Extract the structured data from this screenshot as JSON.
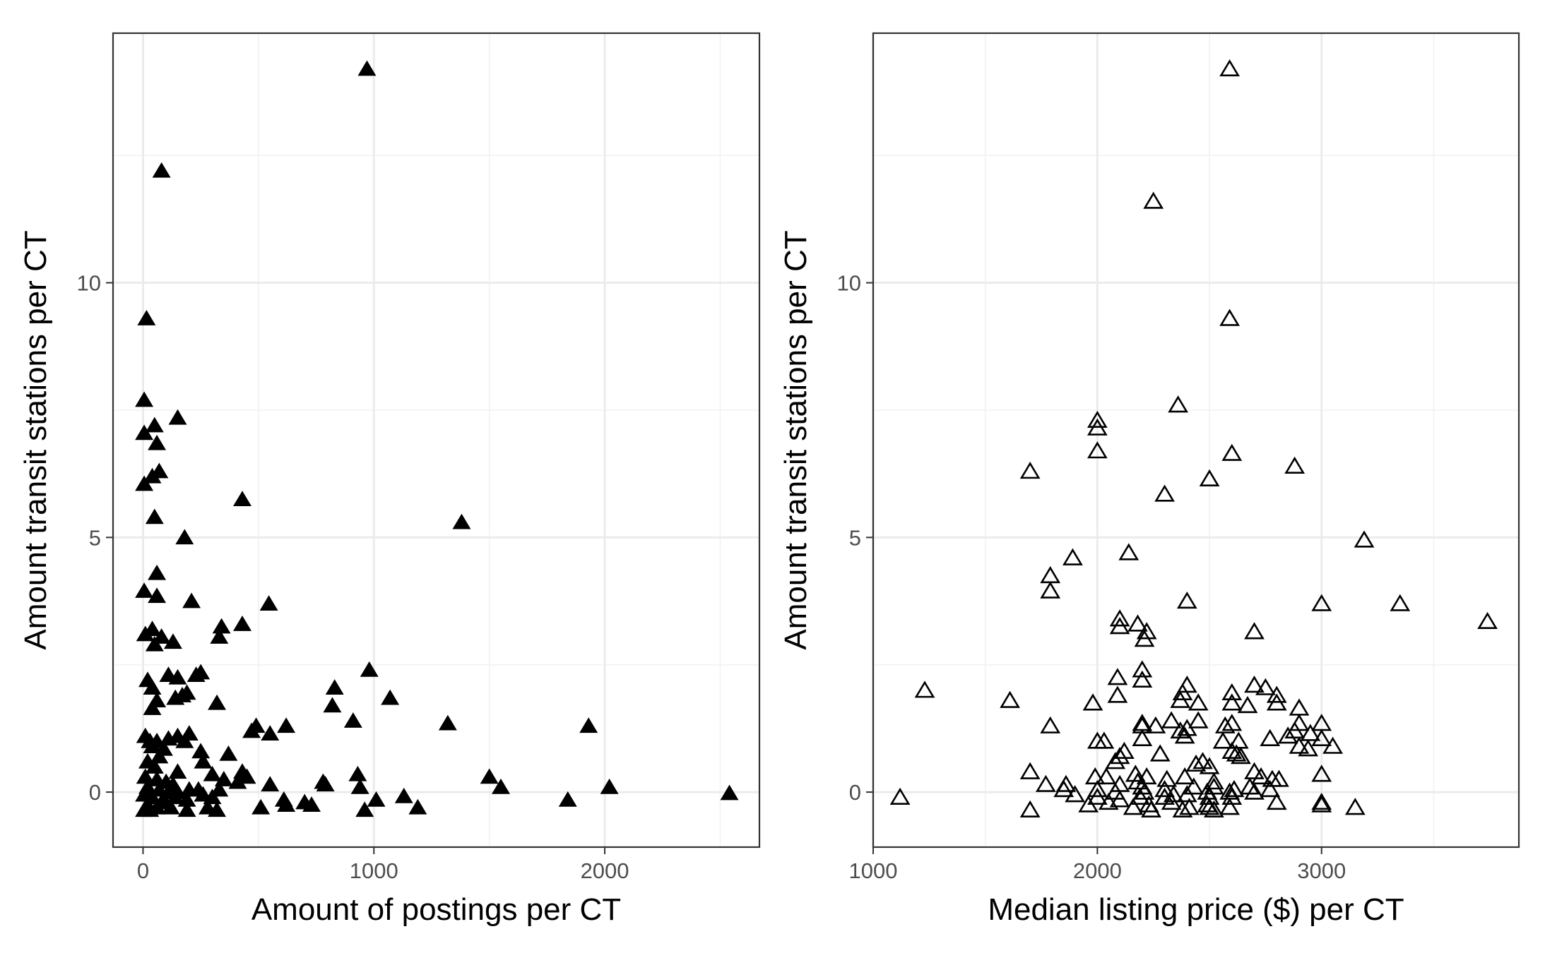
{
  "chart_data": [
    {
      "type": "scatter",
      "marker": "filled-triangle",
      "xlabel": "Amount of postings per CT",
      "ylabel": "Amount transit stations per CT",
      "xlim": [
        -130,
        2670
      ],
      "ylim": [
        -1.08,
        14.9
      ],
      "xticks": [
        0,
        1000,
        2000
      ],
      "yticks": [
        0,
        5,
        10
      ],
      "xticklabels": [
        "0",
        "1000",
        "2000"
      ],
      "yticklabels": [
        "0",
        "5",
        "10"
      ],
      "grid": true,
      "points": [
        [
          970,
          14.2
        ],
        [
          80,
          12.2
        ],
        [
          15,
          9.3
        ],
        [
          5,
          7.7
        ],
        [
          5,
          7.05
        ],
        [
          50,
          7.2
        ],
        [
          60,
          6.85
        ],
        [
          70,
          6.3
        ],
        [
          40,
          6.2
        ],
        [
          5,
          6.05
        ],
        [
          150,
          7.35
        ],
        [
          430,
          5.75
        ],
        [
          1380,
          5.3
        ],
        [
          50,
          5.4
        ],
        [
          180,
          5.0
        ],
        [
          60,
          4.3
        ],
        [
          5,
          3.95
        ],
        [
          60,
          3.85
        ],
        [
          210,
          3.75
        ],
        [
          545,
          3.7
        ],
        [
          430,
          3.3
        ],
        [
          340,
          3.25
        ],
        [
          330,
          3.05
        ],
        [
          10,
          3.1
        ],
        [
          40,
          3.2
        ],
        [
          80,
          3.05
        ],
        [
          130,
          2.95
        ],
        [
          50,
          2.9
        ],
        [
          980,
          2.4
        ],
        [
          230,
          2.3
        ],
        [
          110,
          2.3
        ],
        [
          150,
          2.25
        ],
        [
          20,
          2.2
        ],
        [
          250,
          2.35
        ],
        [
          830,
          2.05
        ],
        [
          40,
          2.05
        ],
        [
          170,
          1.9
        ],
        [
          190,
          1.95
        ],
        [
          1070,
          1.85
        ],
        [
          140,
          1.85
        ],
        [
          60,
          1.8
        ],
        [
          820,
          1.7
        ],
        [
          320,
          1.75
        ],
        [
          40,
          1.65
        ],
        [
          1320,
          1.35
        ],
        [
          1930,
          1.3
        ],
        [
          910,
          1.4
        ],
        [
          490,
          1.3
        ],
        [
          470,
          1.2
        ],
        [
          550,
          1.15
        ],
        [
          620,
          1.3
        ],
        [
          10,
          1.1
        ],
        [
          30,
          1.0
        ],
        [
          60,
          1.0
        ],
        [
          110,
          1.05
        ],
        [
          150,
          1.1
        ],
        [
          200,
          1.15
        ],
        [
          180,
          1.0
        ],
        [
          40,
          0.9
        ],
        [
          90,
          0.85
        ],
        [
          250,
          0.8
        ],
        [
          370,
          0.75
        ],
        [
          70,
          0.7
        ],
        [
          20,
          0.6
        ],
        [
          50,
          0.5
        ],
        [
          260,
          0.6
        ],
        [
          150,
          0.4
        ],
        [
          300,
          0.35
        ],
        [
          430,
          0.4
        ],
        [
          450,
          0.3
        ],
        [
          350,
          0.25
        ],
        [
          1500,
          0.3
        ],
        [
          930,
          0.35
        ],
        [
          10,
          0.3
        ],
        [
          60,
          0.25
        ],
        [
          100,
          0.2
        ],
        [
          130,
          0.15
        ],
        [
          780,
          0.2
        ],
        [
          790,
          0.15
        ],
        [
          1550,
          0.1
        ],
        [
          2020,
          0.1
        ],
        [
          550,
          0.15
        ],
        [
          940,
          0.1
        ],
        [
          240,
          0.05
        ],
        [
          330,
          0.05
        ],
        [
          410,
          0.2
        ],
        [
          20,
          0.1
        ],
        [
          70,
          0.05
        ],
        [
          110,
          0.0
        ],
        [
          150,
          0.0
        ],
        [
          200,
          0.05
        ],
        [
          260,
          -0.05
        ],
        [
          300,
          -0.1
        ],
        [
          190,
          -0.15
        ],
        [
          5,
          -0.05
        ],
        [
          40,
          -0.1
        ],
        [
          90,
          -0.15
        ],
        [
          2540,
          -0.02
        ],
        [
          1840,
          -0.15
        ],
        [
          1130,
          -0.08
        ],
        [
          1010,
          -0.15
        ],
        [
          700,
          -0.2
        ],
        [
          730,
          -0.25
        ],
        [
          620,
          -0.25
        ],
        [
          610,
          -0.15
        ],
        [
          1190,
          -0.3
        ],
        [
          960,
          -0.35
        ],
        [
          510,
          -0.3
        ],
        [
          280,
          -0.3
        ],
        [
          320,
          -0.35
        ],
        [
          190,
          -0.35
        ],
        [
          120,
          -0.3
        ],
        [
          60,
          -0.3
        ],
        [
          20,
          -0.25
        ],
        [
          5,
          -0.35
        ],
        [
          30,
          -0.35
        ],
        [
          80,
          -0.2
        ],
        [
          140,
          -0.1
        ]
      ]
    },
    {
      "type": "scatter",
      "marker": "open-triangle",
      "xlabel": "Median listing price ($) per CT",
      "ylabel": "Amount transit stations per CT",
      "xlim": [
        1000,
        3880
      ],
      "ylim": [
        -1.08,
        14.9
      ],
      "xticks": [
        1000,
        2000,
        3000
      ],
      "yticks": [
        0,
        5,
        10
      ],
      "xticklabels": [
        "1000",
        "2000",
        "3000"
      ],
      "yticklabels": [
        "0",
        "5",
        "10"
      ],
      "grid": true,
      "points": [
        [
          2590,
          14.2
        ],
        [
          2250,
          11.6
        ],
        [
          2590,
          9.3
        ],
        [
          2360,
          7.6
        ],
        [
          2000,
          7.3
        ],
        [
          2000,
          7.15
        ],
        [
          2000,
          6.7
        ],
        [
          2600,
          6.65
        ],
        [
          1700,
          6.3
        ],
        [
          2880,
          6.4
        ],
        [
          2500,
          6.15
        ],
        [
          2300,
          5.85
        ],
        [
          3190,
          4.95
        ],
        [
          2140,
          4.7
        ],
        [
          1890,
          4.6
        ],
        [
          1790,
          4.25
        ],
        [
          1790,
          3.95
        ],
        [
          2400,
          3.75
        ],
        [
          3000,
          3.7
        ],
        [
          3350,
          3.7
        ],
        [
          3740,
          3.35
        ],
        [
          2100,
          3.4
        ],
        [
          2100,
          3.25
        ],
        [
          2180,
          3.3
        ],
        [
          2220,
          3.15
        ],
        [
          2210,
          3.0
        ],
        [
          2700,
          3.15
        ],
        [
          2200,
          2.4
        ],
        [
          2200,
          2.2
        ],
        [
          2090,
          2.25
        ],
        [
          2400,
          2.1
        ],
        [
          2600,
          1.95
        ],
        [
          2700,
          2.1
        ],
        [
          2750,
          2.05
        ],
        [
          2800,
          1.9
        ],
        [
          1230,
          2.0
        ],
        [
          2090,
          1.9
        ],
        [
          2380,
          1.95
        ],
        [
          2370,
          1.8
        ],
        [
          2450,
          1.75
        ],
        [
          2600,
          1.75
        ],
        [
          2670,
          1.7
        ],
        [
          1610,
          1.8
        ],
        [
          1980,
          1.75
        ],
        [
          2800,
          1.75
        ],
        [
          2900,
          1.65
        ],
        [
          2900,
          1.35
        ],
        [
          3000,
          1.35
        ],
        [
          2330,
          1.4
        ],
        [
          2450,
          1.4
        ],
        [
          2570,
          1.3
        ],
        [
          2600,
          1.35
        ],
        [
          2200,
          1.35
        ],
        [
          2260,
          1.3
        ],
        [
          2200,
          1.3
        ],
        [
          2400,
          1.25
        ],
        [
          2370,
          1.2
        ],
        [
          2390,
          1.1
        ],
        [
          1790,
          1.3
        ],
        [
          2200,
          1.05
        ],
        [
          2000,
          1.0
        ],
        [
          2030,
          1.0
        ],
        [
          2560,
          1.0
        ],
        [
          2630,
          1.0
        ],
        [
          2770,
          1.05
        ],
        [
          2850,
          1.1
        ],
        [
          2880,
          1.2
        ],
        [
          2950,
          1.15
        ],
        [
          3000,
          1.05
        ],
        [
          3050,
          0.9
        ],
        [
          2900,
          0.9
        ],
        [
          2940,
          0.85
        ],
        [
          2600,
          0.8
        ],
        [
          2620,
          0.75
        ],
        [
          2640,
          0.7
        ],
        [
          2100,
          0.7
        ],
        [
          2120,
          0.8
        ],
        [
          2080,
          0.6
        ],
        [
          2470,
          0.6
        ],
        [
          2440,
          0.55
        ],
        [
          2500,
          0.5
        ],
        [
          2280,
          0.75
        ],
        [
          1700,
          0.4
        ],
        [
          2700,
          0.4
        ],
        [
          2730,
          0.3
        ],
        [
          3000,
          0.35
        ],
        [
          2170,
          0.35
        ],
        [
          2220,
          0.3
        ],
        [
          1990,
          0.3
        ],
        [
          2040,
          0.3
        ],
        [
          2310,
          0.25
        ],
        [
          2390,
          0.3
        ],
        [
          2520,
          0.2
        ],
        [
          2780,
          0.25
        ],
        [
          2810,
          0.25
        ],
        [
          1770,
          0.15
        ],
        [
          1860,
          0.15
        ],
        [
          2100,
          0.15
        ],
        [
          2180,
          0.2
        ],
        [
          2200,
          0.1
        ],
        [
          2300,
          0.05
        ],
        [
          2430,
          0.1
        ],
        [
          2520,
          0.1
        ],
        [
          2610,
          0.05
        ],
        [
          2680,
          0.1
        ],
        [
          1850,
          0.05
        ],
        [
          2000,
          0.05
        ],
        [
          2080,
          0.0
        ],
        [
          2210,
          0.0
        ],
        [
          2340,
          -0.05
        ],
        [
          2490,
          0.0
        ],
        [
          2590,
          0.0
        ],
        [
          2700,
          0.0
        ],
        [
          2770,
          0.05
        ],
        [
          1900,
          -0.05
        ],
        [
          2000,
          -0.1
        ],
        [
          2100,
          -0.15
        ],
        [
          2190,
          -0.1
        ],
        [
          2300,
          -0.1
        ],
        [
          2400,
          -0.05
        ],
        [
          2500,
          -0.1
        ],
        [
          2600,
          -0.1
        ],
        [
          1120,
          -0.1
        ],
        [
          1960,
          -0.25
        ],
        [
          2050,
          -0.2
        ],
        [
          2160,
          -0.3
        ],
        [
          2230,
          -0.25
        ],
        [
          2330,
          -0.2
        ],
        [
          2410,
          -0.3
        ],
        [
          2490,
          -0.25
        ],
        [
          2500,
          -0.3
        ],
        [
          2590,
          -0.3
        ],
        [
          2800,
          -0.2
        ],
        [
          3000,
          -0.2
        ],
        [
          3000,
          -0.25
        ],
        [
          3150,
          -0.3
        ],
        [
          1700,
          -0.35
        ],
        [
          2240,
          -0.35
        ],
        [
          2380,
          -0.35
        ],
        [
          2520,
          -0.35
        ]
      ]
    }
  ]
}
